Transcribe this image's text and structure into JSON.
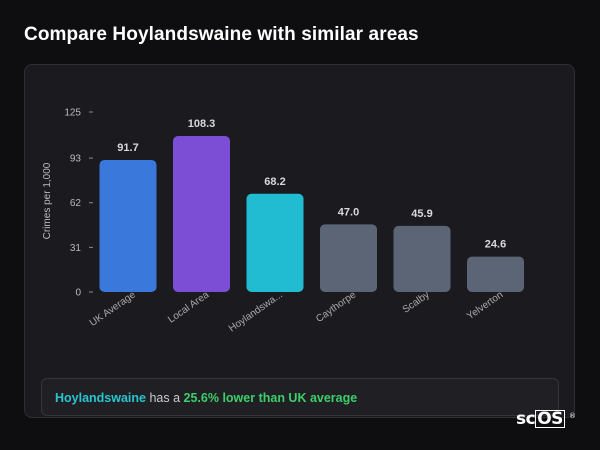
{
  "page_title": "Compare Hoylandswaine with similar areas",
  "summary": {
    "place": "Hoylandswaine",
    "middle": " has a ",
    "difference": "25.6% lower than UK average"
  },
  "logo": {
    "text_plain": "sc",
    "text_boxed": "OS",
    "mark": "®"
  },
  "colors": {
    "uk_average": "#3a78dc",
    "local_area": "#7c4ed6",
    "selected": "#22bcd2",
    "neighbour": "#5b6575",
    "highlight_text": "#3ccf6a"
  },
  "chart_data": {
    "type": "bar",
    "title": "",
    "xlabel": "",
    "ylabel": "Crimes per 1,000",
    "ylim": [
      0,
      125
    ],
    "yticks": [
      0,
      31,
      62,
      93,
      125
    ],
    "grid": false,
    "categories": [
      "UK Average",
      "Local Area",
      "Hoylandswa...",
      "Caythorpe",
      "Scalby",
      "Yelverton"
    ],
    "values": [
      91.7,
      108.3,
      68.2,
      47.0,
      45.9,
      24.6
    ],
    "value_labels": [
      "91.7",
      "108.3",
      "68.2",
      "47.0",
      "45.9",
      "24.6"
    ],
    "bar_colors": [
      "#3a78dc",
      "#7c4ed6",
      "#22bcd2",
      "#5b6575",
      "#5b6575",
      "#5b6575"
    ]
  }
}
